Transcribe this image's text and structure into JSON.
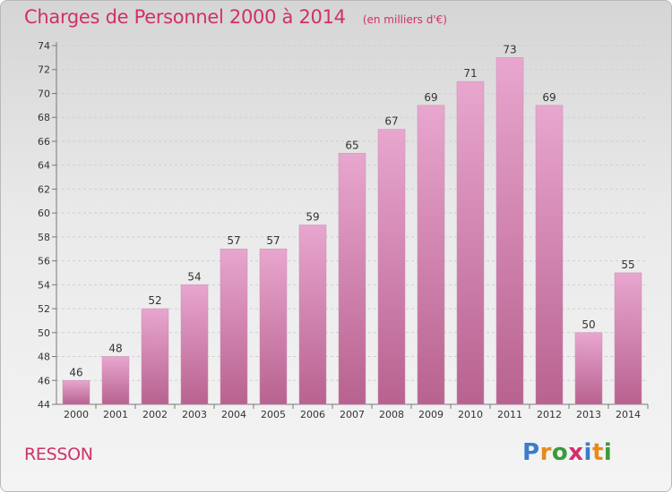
{
  "header": {
    "title": "Charges de Personnel 2000 à 2014",
    "subtitle": "(en milliers d'€)"
  },
  "footer": {
    "place": "RESSON",
    "logo_text": "Proxiti",
    "logo_colors": [
      "#3a7dc9",
      "#e88a1a",
      "#3a9a3a",
      "#d0306a",
      "#3a7dc9",
      "#e88a1a",
      "#3a9a3a"
    ]
  },
  "colors": {
    "accent": "#d0306a",
    "bar_top": "#e8a6cf",
    "bar_bottom": "#b8628f"
  },
  "chart_data": {
    "type": "bar",
    "title": "Charges de Personnel 2000 à 2014",
    "subtitle": "(en milliers d'€)",
    "xlabel": "",
    "ylabel": "",
    "categories": [
      "2000",
      "2001",
      "2002",
      "2003",
      "2004",
      "2005",
      "2006",
      "2007",
      "2008",
      "2009",
      "2010",
      "2011",
      "2012",
      "2013",
      "2014"
    ],
    "values": [
      46,
      48,
      52,
      54,
      57,
      57,
      59,
      65,
      67,
      69,
      71,
      73,
      69,
      50,
      55
    ],
    "ylim": [
      44,
      74
    ],
    "yticks": [
      44,
      46,
      48,
      50,
      52,
      54,
      56,
      58,
      60,
      62,
      64,
      66,
      68,
      70,
      72,
      74
    ],
    "grid": true,
    "legend": "none"
  }
}
